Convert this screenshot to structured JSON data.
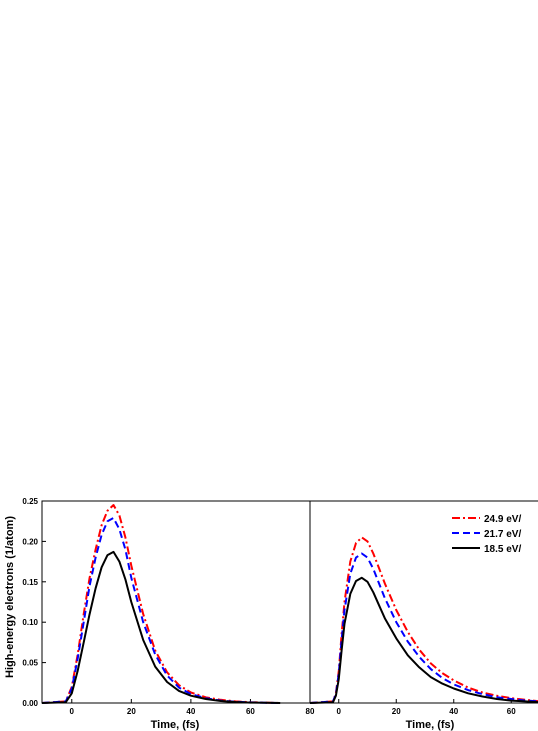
{
  "chart_data": [
    {
      "type": "line",
      "xlabel": "Time, (fs)",
      "ylabel": "High-energy electrons (1/atom)",
      "xlim": [
        -10,
        80
      ],
      "ylim": [
        0,
        0.25
      ],
      "xticks": [
        "0",
        "20",
        "40",
        "60",
        "80"
      ],
      "yticks": [
        "0.00",
        "0.05",
        "0.10",
        "0.15",
        "0.20",
        "0.25"
      ],
      "grid": false,
      "series": [
        {
          "color": "#ff0000",
          "style": "dash-dot",
          "x": [
            -10,
            -2,
            0,
            2,
            4,
            6,
            8,
            10,
            12,
            14,
            16,
            18,
            20,
            24,
            28,
            32,
            36,
            40,
            45,
            50,
            55,
            60,
            65,
            70
          ],
          "y": [
            0,
            0.002,
            0.02,
            0.06,
            0.11,
            0.155,
            0.19,
            0.22,
            0.238,
            0.245,
            0.232,
            0.205,
            0.17,
            0.11,
            0.065,
            0.038,
            0.022,
            0.013,
            0.007,
            0.004,
            0.002,
            0.001,
            0.0005,
            0
          ]
        },
        {
          "color": "#0000ff",
          "style": "dash",
          "x": [
            -10,
            -2,
            0,
            2,
            4,
            6,
            8,
            10,
            12,
            14,
            16,
            18,
            20,
            24,
            28,
            32,
            36,
            40,
            45,
            50,
            55,
            60,
            65,
            70
          ],
          "y": [
            0,
            0.002,
            0.018,
            0.055,
            0.1,
            0.145,
            0.18,
            0.208,
            0.225,
            0.229,
            0.215,
            0.19,
            0.155,
            0.1,
            0.06,
            0.034,
            0.019,
            0.011,
            0.006,
            0.003,
            0.0015,
            0.0008,
            0.0003,
            0
          ]
        },
        {
          "color": "#000000",
          "style": "solid",
          "x": [
            -10,
            -2,
            0,
            2,
            4,
            6,
            8,
            10,
            12,
            14,
            16,
            18,
            20,
            24,
            28,
            32,
            36,
            40,
            45,
            50,
            55,
            60,
            65,
            70
          ],
          "y": [
            0,
            0.001,
            0.012,
            0.04,
            0.075,
            0.11,
            0.142,
            0.168,
            0.183,
            0.187,
            0.175,
            0.153,
            0.125,
            0.078,
            0.045,
            0.026,
            0.015,
            0.009,
            0.005,
            0.0025,
            0.0012,
            0.0005,
            0.0002,
            0
          ]
        }
      ]
    },
    {
      "type": "line",
      "xlabel": "Time, (fs)",
      "xlim": [
        -10,
        70
      ],
      "ylim": [
        0,
        0.25
      ],
      "xticks": [
        "0",
        "20",
        "40",
        "60"
      ],
      "grid": false,
      "legend_position": "top-right",
      "series": [
        {
          "name": "24.9 eV/",
          "color": "#ff0000",
          "style": "dash-dot",
          "x": [
            -10,
            -2,
            -1,
            0,
            1,
            2,
            4,
            6,
            8,
            10,
            12,
            14,
            16,
            20,
            24,
            28,
            32,
            36,
            40,
            45,
            50,
            55,
            60,
            65,
            70
          ],
          "y": [
            0,
            0.002,
            0.012,
            0.04,
            0.085,
            0.125,
            0.175,
            0.198,
            0.205,
            0.2,
            0.185,
            0.167,
            0.148,
            0.115,
            0.088,
            0.066,
            0.049,
            0.037,
            0.028,
            0.019,
            0.013,
            0.009,
            0.006,
            0.004,
            0.002
          ]
        },
        {
          "name": "21.7 eV/",
          "color": "#0000ff",
          "style": "dash",
          "x": [
            -10,
            -2,
            -1,
            0,
            1,
            2,
            4,
            6,
            8,
            10,
            12,
            14,
            16,
            20,
            24,
            28,
            32,
            36,
            40,
            45,
            50,
            55,
            60,
            65,
            70
          ],
          "y": [
            0,
            0.002,
            0.011,
            0.037,
            0.078,
            0.115,
            0.16,
            0.18,
            0.185,
            0.18,
            0.166,
            0.148,
            0.13,
            0.1,
            0.076,
            0.057,
            0.042,
            0.031,
            0.023,
            0.016,
            0.011,
            0.007,
            0.005,
            0.003,
            0.002
          ]
        },
        {
          "name": "18.5 eV/",
          "color": "#000000",
          "style": "solid",
          "x": [
            -10,
            -2,
            -1,
            0,
            1,
            2,
            4,
            6,
            8,
            10,
            12,
            14,
            16,
            20,
            24,
            28,
            32,
            36,
            40,
            45,
            50,
            55,
            60,
            65,
            70
          ],
          "y": [
            0,
            0.001,
            0.009,
            0.03,
            0.065,
            0.098,
            0.135,
            0.151,
            0.155,
            0.15,
            0.137,
            0.121,
            0.105,
            0.08,
            0.059,
            0.044,
            0.032,
            0.024,
            0.018,
            0.012,
            0.008,
            0.005,
            0.003,
            0.002,
            0.001
          ]
        }
      ]
    }
  ]
}
